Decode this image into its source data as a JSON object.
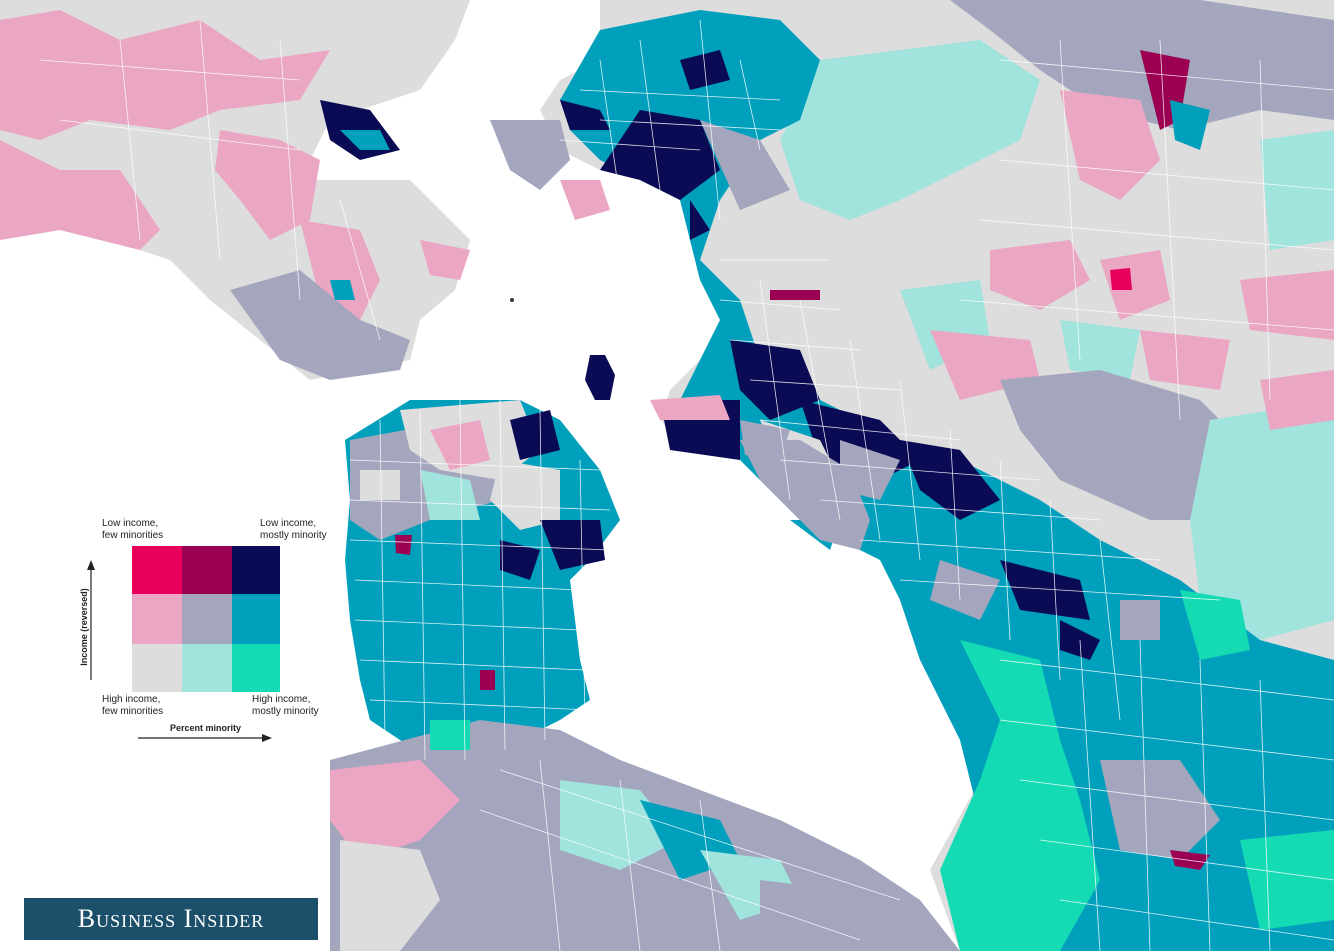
{
  "colors": {
    "water": "#ffffff",
    "low_income_few_minorities": "#e6005c",
    "low_income_some_minority": "#9b0052",
    "low_income_mostly_minority": "#0b0a55",
    "mid_income_few_minorities": "#eaa6c2",
    "mid_income_some_minority": "#a4a6bd",
    "mid_income_mostly_minority": "#00a0bc",
    "high_income_few_minorities": "#dddddd",
    "high_income_some_minority": "#a1e3dd",
    "high_income_mostly_minority": "#14dbb4",
    "boundary": "#ffffff"
  },
  "legend": {
    "top_left": "Low income,\nfew minorities",
    "top_right": "Low income,\nmostly minority",
    "bottom_left": "High income,\nfew minorities",
    "bottom_right": "High income,\nmostly minority",
    "y_axis_label": "Income (reversed)",
    "x_axis_label": "Percent minority"
  },
  "branding": {
    "logo_text": "Business Insider"
  }
}
